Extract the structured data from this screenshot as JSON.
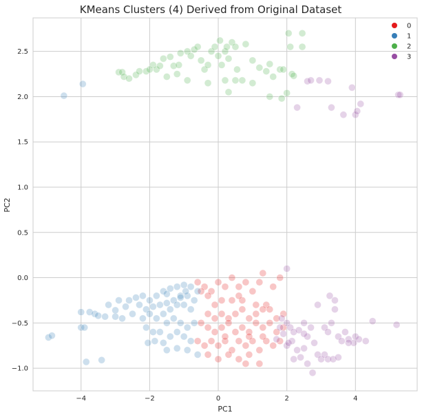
{
  "chart_data": {
    "type": "scatter",
    "title": "KMeans Clusters (4) Derived from Original Dataset",
    "xlabel": "PC1",
    "ylabel": "PC2",
    "xlim": [
      -5.4,
      5.8
    ],
    "ylim": [
      -1.25,
      2.87
    ],
    "xticks": [
      -4,
      -2,
      0,
      2,
      4
    ],
    "yticks": [
      -1.0,
      -0.5,
      0.0,
      0.5,
      1.0,
      1.5,
      2.0,
      2.5
    ],
    "grid": true,
    "legend": "top-right",
    "point_alpha": 0.25,
    "series": [
      {
        "name": "0",
        "color": "#e41a1c",
        "points": [
          [
            -0.6,
            -0.05
          ],
          [
            -0.4,
            -0.1
          ],
          [
            -0.2,
            -0.15
          ],
          [
            0.0,
            -0.05
          ],
          [
            0.2,
            -0.1
          ],
          [
            0.4,
            -0.0
          ],
          [
            0.6,
            -0.1
          ],
          [
            0.8,
            -0.05
          ],
          [
            1.0,
            -0.15
          ],
          [
            1.2,
            -0.05
          ],
          [
            1.3,
            0.05
          ],
          [
            1.8,
            0.0
          ],
          [
            1.6,
            -0.1
          ],
          [
            0.4,
            -0.25
          ],
          [
            0.1,
            -0.25
          ],
          [
            -0.3,
            -0.2
          ],
          [
            -0.5,
            -0.15
          ],
          [
            0.7,
            -0.25
          ],
          [
            1.1,
            -0.3
          ],
          [
            1.4,
            -0.3
          ],
          [
            -0.3,
            -0.4
          ],
          [
            -0.1,
            -0.45
          ],
          [
            0.1,
            -0.4
          ],
          [
            0.3,
            -0.45
          ],
          [
            0.5,
            -0.4
          ],
          [
            0.7,
            -0.35
          ],
          [
            0.9,
            -0.45
          ],
          [
            1.1,
            -0.4
          ],
          [
            1.3,
            -0.35
          ],
          [
            1.5,
            -0.35
          ],
          [
            1.7,
            -0.45
          ],
          [
            1.9,
            -0.4
          ],
          [
            -0.5,
            -0.5
          ],
          [
            -0.3,
            -0.55
          ],
          [
            -0.1,
            -0.6
          ],
          [
            0.1,
            -0.55
          ],
          [
            0.3,
            -0.5
          ],
          [
            0.5,
            -0.6
          ],
          [
            0.7,
            -0.55
          ],
          [
            0.9,
            -0.6
          ],
          [
            1.1,
            -0.5
          ],
          [
            1.3,
            -0.55
          ],
          [
            1.5,
            -0.5
          ],
          [
            1.7,
            -0.6
          ],
          [
            1.9,
            -0.55
          ],
          [
            -0.6,
            -0.7
          ],
          [
            -0.4,
            -0.75
          ],
          [
            -0.2,
            -0.7
          ],
          [
            0.0,
            -0.75
          ],
          [
            0.2,
            -0.7
          ],
          [
            0.4,
            -0.8
          ],
          [
            0.6,
            -0.7
          ],
          [
            0.8,
            -0.75
          ],
          [
            1.0,
            -0.7
          ],
          [
            1.2,
            -0.8
          ],
          [
            1.4,
            -0.7
          ],
          [
            1.6,
            -0.75
          ],
          [
            1.8,
            -0.7
          ],
          [
            -0.3,
            -0.85
          ],
          [
            0.0,
            -0.9
          ],
          [
            0.3,
            -0.85
          ],
          [
            0.6,
            -0.9
          ],
          [
            0.9,
            -0.85
          ],
          [
            1.2,
            -0.95
          ],
          [
            0.8,
            -0.95
          ],
          [
            0.2,
            -0.65
          ],
          [
            0.9,
            -0.65
          ],
          [
            1.3,
            -0.65
          ],
          [
            -0.1,
            -0.3
          ],
          [
            0.6,
            -0.2
          ]
        ]
      },
      {
        "name": "1",
        "color": "#377eb8",
        "points": [
          [
            -4.95,
            -0.66
          ],
          [
            -4.85,
            -0.64
          ],
          [
            -4.5,
            2.01
          ],
          [
            -3.95,
            2.14
          ],
          [
            -4.0,
            -0.55
          ],
          [
            -3.9,
            -0.55
          ],
          [
            -4.0,
            -0.38
          ],
          [
            -3.85,
            -0.93
          ],
          [
            -3.75,
            -0.38
          ],
          [
            -3.6,
            -0.4
          ],
          [
            -3.4,
            -0.91
          ],
          [
            -3.5,
            -0.42
          ],
          [
            -3.3,
            -0.43
          ],
          [
            -3.2,
            -0.3
          ],
          [
            -3.0,
            -0.43
          ],
          [
            -3.0,
            -0.36
          ],
          [
            -2.9,
            -0.25
          ],
          [
            -2.8,
            -0.45
          ],
          [
            -2.7,
            -0.32
          ],
          [
            -2.6,
            -0.25
          ],
          [
            -2.5,
            -0.4
          ],
          [
            -2.4,
            -0.22
          ],
          [
            -2.3,
            -0.3
          ],
          [
            -2.2,
            -0.2
          ],
          [
            -2.1,
            -0.35
          ],
          [
            -2.0,
            -0.25
          ],
          [
            -1.9,
            -0.32
          ],
          [
            -1.8,
            -0.2
          ],
          [
            -1.7,
            -0.3
          ],
          [
            -1.6,
            -0.15
          ],
          [
            -1.5,
            -0.28
          ],
          [
            -1.4,
            -0.12
          ],
          [
            -1.3,
            -0.25
          ],
          [
            -1.2,
            -0.1
          ],
          [
            -1.1,
            -0.2
          ],
          [
            -1.0,
            -0.08
          ],
          [
            -0.9,
            -0.2
          ],
          [
            -0.8,
            -0.1
          ],
          [
            -0.7,
            -0.25
          ],
          [
            -0.6,
            -0.15
          ],
          [
            -2.2,
            -0.45
          ],
          [
            -2.0,
            -0.4
          ],
          [
            -1.8,
            -0.45
          ],
          [
            -1.6,
            -0.4
          ],
          [
            -1.4,
            -0.35
          ],
          [
            -1.2,
            -0.3
          ],
          [
            -1.0,
            -0.3
          ],
          [
            -0.8,
            -0.35
          ],
          [
            -2.1,
            -0.55
          ],
          [
            -1.9,
            -0.6
          ],
          [
            -1.7,
            -0.6
          ],
          [
            -1.5,
            -0.5
          ],
          [
            -1.3,
            -0.45
          ],
          [
            -1.1,
            -0.5
          ],
          [
            -0.9,
            -0.55
          ],
          [
            -0.7,
            -0.5
          ],
          [
            -2.05,
            -0.72
          ],
          [
            -1.85,
            -0.7
          ],
          [
            -1.6,
            -0.72
          ],
          [
            -1.4,
            -0.65
          ],
          [
            -1.2,
            -0.6
          ],
          [
            -1.0,
            -0.65
          ],
          [
            -0.8,
            -0.7
          ],
          [
            -1.5,
            -0.8
          ],
          [
            -1.2,
            -0.78
          ],
          [
            -0.9,
            -0.8
          ],
          [
            -0.6,
            -0.85
          ],
          [
            -1.1,
            -0.22
          ],
          [
            -1.5,
            -0.18
          ],
          [
            -0.95,
            -0.15
          ]
        ]
      },
      {
        "name": "2",
        "color": "#4daf4a",
        "points": [
          [
            -2.9,
            2.27
          ],
          [
            -2.8,
            2.27
          ],
          [
            -2.75,
            2.22
          ],
          [
            -2.6,
            2.2
          ],
          [
            -2.4,
            2.24
          ],
          [
            -2.3,
            2.28
          ],
          [
            -2.1,
            2.28
          ],
          [
            -1.9,
            2.35
          ],
          [
            -1.8,
            2.3
          ],
          [
            -1.7,
            2.34
          ],
          [
            -1.6,
            2.42
          ],
          [
            -1.4,
            2.44
          ],
          [
            -1.3,
            2.34
          ],
          [
            -1.2,
            2.25
          ],
          [
            -1.15,
            2.35
          ],
          [
            -1.1,
            2.48
          ],
          [
            -0.9,
            2.5
          ],
          [
            -0.8,
            2.45
          ],
          [
            -0.7,
            2.52
          ],
          [
            -0.6,
            2.55
          ],
          [
            -0.5,
            2.4
          ],
          [
            -0.4,
            2.3
          ],
          [
            -0.3,
            2.35
          ],
          [
            -0.2,
            2.5
          ],
          [
            -0.1,
            2.55
          ],
          [
            0.0,
            2.45
          ],
          [
            0.05,
            2.62
          ],
          [
            0.1,
            2.35
          ],
          [
            0.2,
            2.5
          ],
          [
            0.25,
            2.55
          ],
          [
            0.3,
            2.42
          ],
          [
            0.4,
            2.6
          ],
          [
            0.5,
            2.55
          ],
          [
            0.55,
            2.3
          ],
          [
            0.7,
            2.18
          ],
          [
            0.8,
            2.58
          ],
          [
            1.0,
            2.4
          ],
          [
            1.2,
            2.32
          ],
          [
            1.4,
            2.28
          ],
          [
            1.5,
            2.36
          ],
          [
            1.6,
            2.22
          ],
          [
            1.8,
            2.3
          ],
          [
            1.9,
            2.3
          ],
          [
            2.0,
            2.04
          ],
          [
            2.1,
            2.55
          ],
          [
            2.15,
            2.25
          ],
          [
            2.2,
            2.23
          ],
          [
            2.45,
            2.55
          ],
          [
            0.3,
            2.05
          ],
          [
            0.5,
            2.18
          ],
          [
            1.5,
            2.0
          ],
          [
            1.85,
            1.98
          ],
          [
            2.05,
            2.7
          ],
          [
            2.45,
            2.7
          ],
          [
            -0.9,
            2.18
          ],
          [
            -1.5,
            2.22
          ],
          [
            1.0,
            2.15
          ],
          [
            0.2,
            2.18
          ],
          [
            -0.3,
            2.15
          ],
          [
            -2.0,
            2.3
          ]
        ]
      },
      {
        "name": "3",
        "color": "#984ea3",
        "points": [
          [
            2.6,
            2.17
          ],
          [
            2.7,
            2.18
          ],
          [
            2.95,
            2.18
          ],
          [
            2.3,
            1.88
          ],
          [
            3.2,
            2.17
          ],
          [
            3.3,
            1.88
          ],
          [
            3.65,
            1.8
          ],
          [
            3.9,
            2.1
          ],
          [
            4.0,
            1.8
          ],
          [
            4.05,
            1.84
          ],
          [
            4.15,
            1.92
          ],
          [
            5.25,
            2.02
          ],
          [
            5.3,
            2.02
          ],
          [
            2.0,
            0.1
          ],
          [
            1.85,
            -0.45
          ],
          [
            2.0,
            -0.5
          ],
          [
            2.1,
            -0.55
          ],
          [
            2.2,
            -0.6
          ],
          [
            2.35,
            -0.58
          ],
          [
            2.5,
            -0.5
          ],
          [
            2.7,
            -0.55
          ],
          [
            2.9,
            -0.3
          ],
          [
            3.1,
            -0.55
          ],
          [
            3.2,
            -0.6
          ],
          [
            3.3,
            -0.5
          ],
          [
            3.4,
            -0.35
          ],
          [
            3.5,
            -0.65
          ],
          [
            3.6,
            -0.7
          ],
          [
            3.7,
            -0.6
          ],
          [
            3.8,
            -0.68
          ],
          [
            3.95,
            -0.72
          ],
          [
            4.0,
            -0.65
          ],
          [
            4.3,
            -0.7
          ],
          [
            4.5,
            -0.48
          ],
          [
            5.2,
            -0.52
          ],
          [
            1.7,
            -0.68
          ],
          [
            1.9,
            -0.62
          ],
          [
            2.0,
            -0.75
          ],
          [
            2.15,
            -0.7
          ],
          [
            2.3,
            -0.8
          ],
          [
            2.5,
            -0.78
          ],
          [
            2.6,
            -0.65
          ],
          [
            2.8,
            -0.72
          ],
          [
            2.9,
            -0.85
          ],
          [
            3.0,
            -0.9
          ],
          [
            3.1,
            -0.85
          ],
          [
            3.2,
            -0.9
          ],
          [
            3.35,
            -0.9
          ],
          [
            3.5,
            -0.88
          ],
          [
            2.6,
            -0.95
          ],
          [
            2.75,
            -1.05
          ],
          [
            2.4,
            -0.88
          ],
          [
            2.2,
            -0.9
          ],
          [
            3.25,
            -0.2
          ],
          [
            3.4,
            -0.25
          ],
          [
            3.8,
            -0.72
          ],
          [
            4.1,
            -0.68
          ],
          [
            2.5,
            -0.62
          ],
          [
            2.05,
            -0.72
          ],
          [
            1.8,
            -0.55
          ]
        ]
      }
    ]
  }
}
